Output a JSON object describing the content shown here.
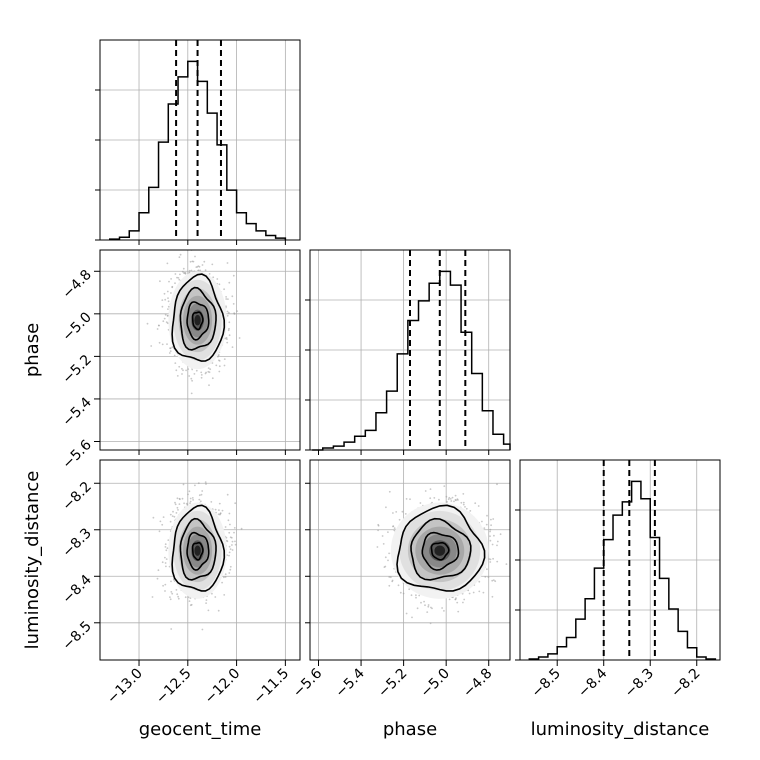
{
  "chart_data": {
    "type": "corner",
    "parameters": [
      "geocent_time",
      "phase",
      "luminosity_distance"
    ],
    "axes": {
      "geocent_time": {
        "lim": [
          -13.4,
          -11.35
        ],
        "ticks": [
          -13.0,
          -12.5,
          -12.0,
          -11.5
        ],
        "tick_labels": [
          "−13.0",
          "−12.5",
          "−12.0",
          "−11.5"
        ]
      },
      "phase": {
        "lim": [
          -5.64,
          -4.7
        ],
        "ticks": [
          -5.6,
          -5.4,
          -5.2,
          -5.0,
          -4.8
        ],
        "tick_labels": [
          "−5.6",
          "−5.4",
          "−5.2",
          "−5.0",
          "−4.8"
        ]
      },
      "luminosity_distance": {
        "lim": [
          -8.58,
          -8.15
        ],
        "ticks": [
          -8.5,
          -8.4,
          -8.3,
          -8.2
        ],
        "tick_labels": [
          "−8.5",
          "−8.4",
          "−8.3",
          "−8.2"
        ]
      }
    },
    "quantiles": {
      "geocent_time": [
        -12.62,
        -12.4,
        -12.16
      ],
      "phase": [
        -5.17,
        -5.03,
        -4.91
      ],
      "luminosity_distance": [
        -8.4,
        -8.345,
        -8.29
      ]
    },
    "histograms": {
      "geocent_time": {
        "edges": [
          -13.3,
          -13.2,
          -13.1,
          -13.0,
          -12.9,
          -12.8,
          -12.7,
          -12.6,
          -12.5,
          -12.4,
          -12.3,
          -12.2,
          -12.1,
          -12.0,
          -11.9,
          -11.8,
          -11.7,
          -11.6,
          -11.5
        ],
        "counts": [
          1,
          3,
          10,
          30,
          58,
          108,
          150,
          180,
          197,
          175,
          140,
          105,
          55,
          30,
          18,
          10,
          5,
          2
        ]
      },
      "phase": {
        "edges": [
          -5.63,
          -5.58,
          -5.53,
          -5.48,
          -5.43,
          -5.38,
          -5.33,
          -5.28,
          -5.23,
          -5.18,
          -5.13,
          -5.08,
          -5.03,
          -4.98,
          -4.93,
          -4.88,
          -4.83,
          -4.78,
          -4.73,
          -4.7
        ],
        "counts": [
          0,
          2,
          4,
          8,
          14,
          20,
          38,
          60,
          98,
          132,
          152,
          170,
          182,
          168,
          120,
          78,
          40,
          16,
          6
        ]
      },
      "luminosity_distance": {
        "edges": [
          -8.56,
          -8.54,
          -8.52,
          -8.5,
          -8.48,
          -8.46,
          -8.44,
          -8.42,
          -8.4,
          -8.38,
          -8.36,
          -8.34,
          -8.32,
          -8.3,
          -8.28,
          -8.26,
          -8.24,
          -8.22,
          -8.2,
          -8.18,
          -8.16
        ],
        "counts": [
          1,
          3,
          6,
          13,
          22,
          40,
          60,
          90,
          118,
          142,
          155,
          175,
          158,
          120,
          80,
          50,
          28,
          12,
          3,
          1
        ]
      }
    },
    "joint": [
      {
        "x": "geocent_time",
        "y": "phase",
        "center": [
          -12.4,
          -5.03
        ],
        "sigma": [
          0.13,
          0.1
        ]
      },
      {
        "x": "geocent_time",
        "y": "luminosity_distance",
        "center": [
          -12.4,
          -8.345
        ],
        "sigma": [
          0.13,
          0.045
        ]
      },
      {
        "x": "phase",
        "y": "luminosity_distance",
        "center": [
          -5.03,
          -8.345
        ],
        "sigma": [
          0.1,
          0.045
        ]
      }
    ],
    "grid": true,
    "colors": {
      "line": "#000000",
      "grid": "#b0b0b0",
      "points": "#9a9a9a"
    }
  }
}
